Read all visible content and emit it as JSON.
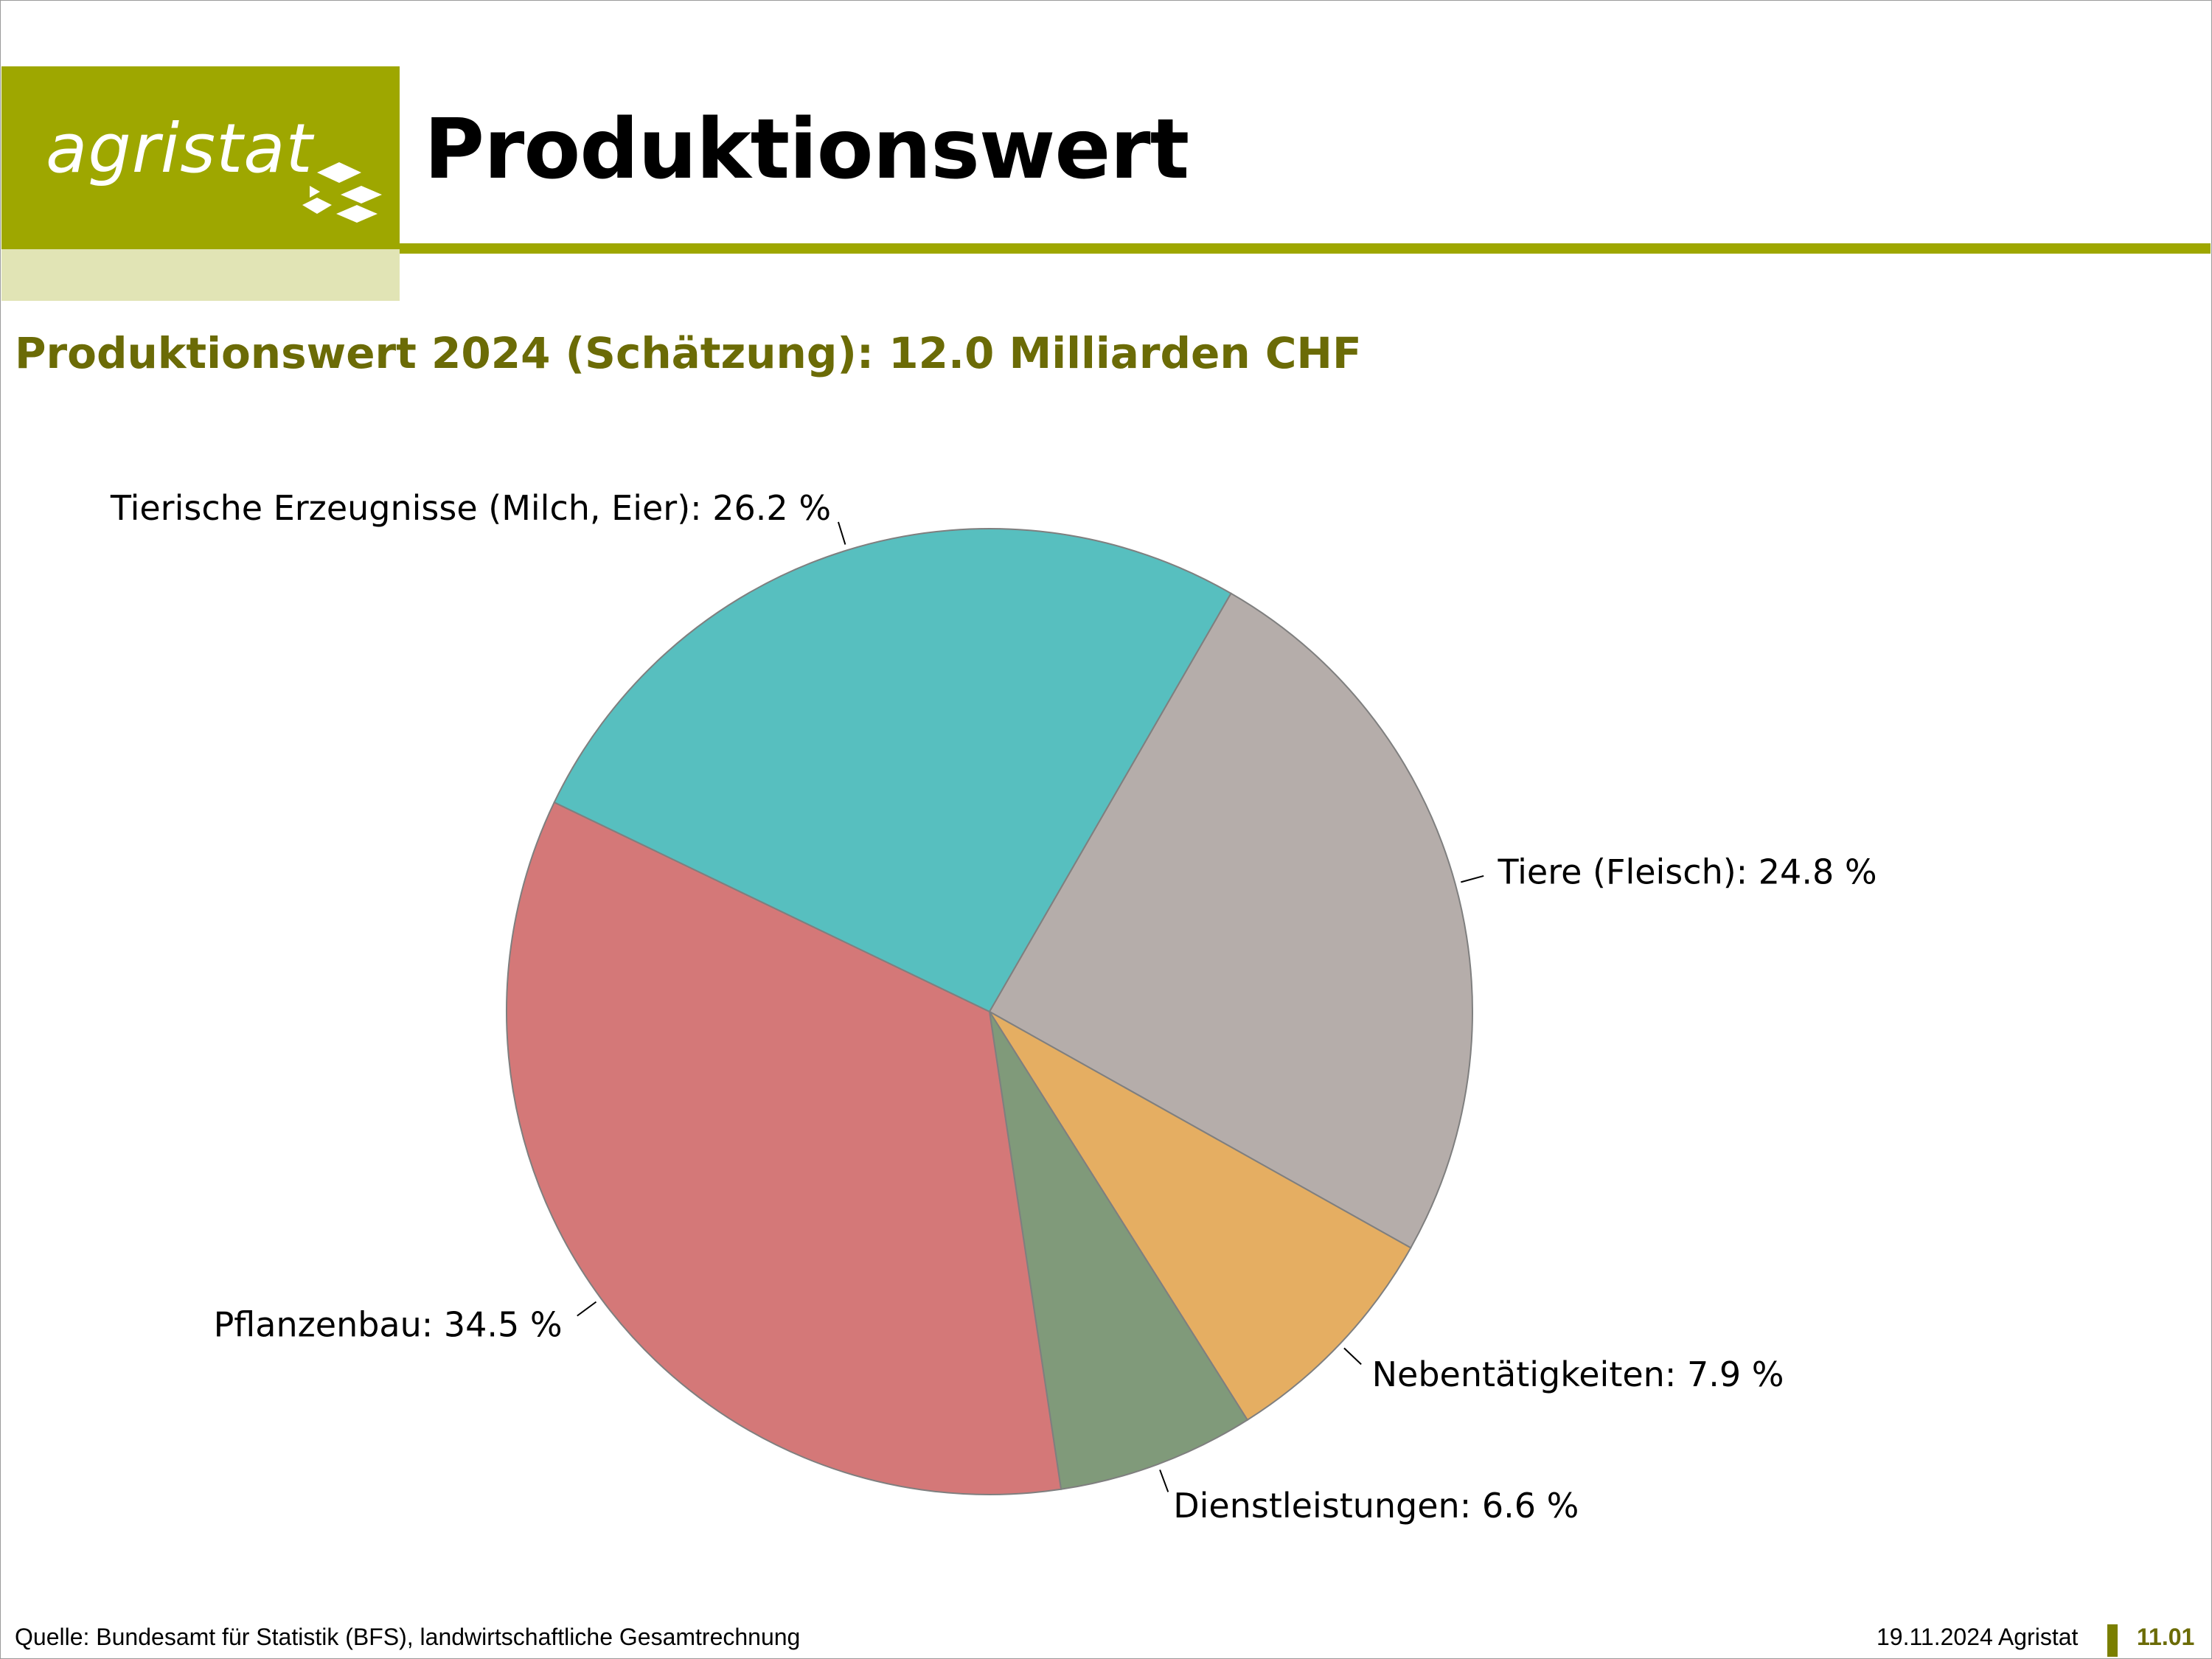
{
  "header": {
    "logo_text": "agristat",
    "title": "Produktionswert",
    "brand_color": "#9ea700"
  },
  "subtitle": "Produktionswert 2024 (Schätzung): 12.0 Milliarden CHF",
  "chart_data": {
    "type": "pie",
    "title": "",
    "start_angle_deg": 30,
    "direction": "clockwise",
    "slices": [
      {
        "label": "Tiere (Fleisch): 24.8 %",
        "value": 24.8,
        "color": "#b5adaa"
      },
      {
        "label": "Nebentätigkeiten: 7.9 %",
        "value": 7.9,
        "color": "#e5ae62"
      },
      {
        "label": "Dienstleistungen: 6.6 %",
        "value": 6.6,
        "color": "#809a7a"
      },
      {
        "label": "Pflanzenbau: 34.5 %",
        "value": 34.5,
        "color": "#d47878"
      },
      {
        "label": "Tierische Erzeugnisse (Milch, Eier): 26.2 %",
        "value": 26.2,
        "color": "#57bfbf"
      }
    ]
  },
  "footer": {
    "source": "Quelle: Bundesamt für Statistik (BFS), landwirtschaftliche Gesamtrechnung",
    "date": "19.11.2024 Agristat",
    "page": "11.01"
  }
}
